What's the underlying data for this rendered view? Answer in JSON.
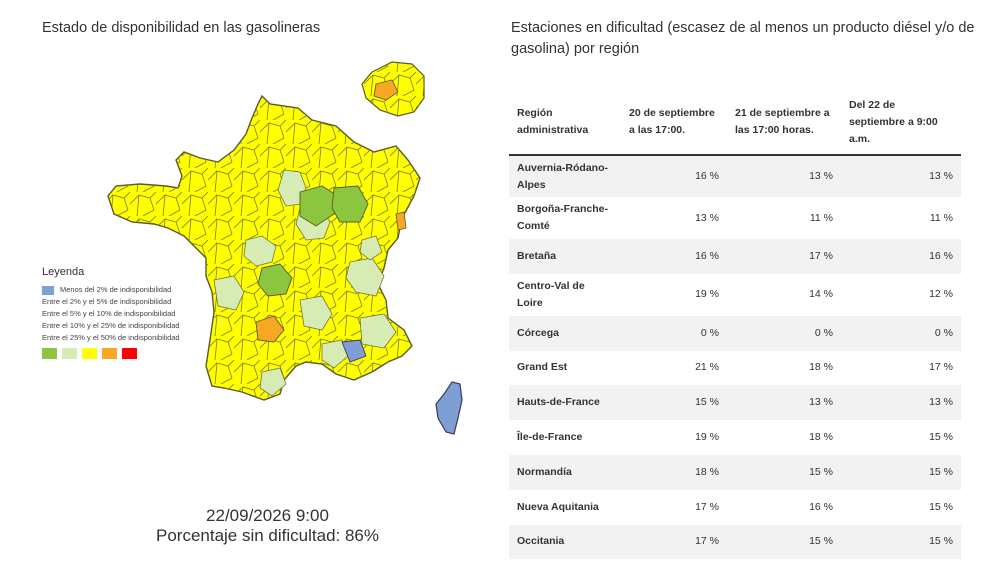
{
  "left": {
    "title": "Estado de disponibilidad en las gasolineras",
    "legend": {
      "title": "Leyenda",
      "items": [
        "Menos del 2% de indisponibilidad",
        "Entre el 2% y el 5% de indisponibilidad",
        "Entre el 5% y el 10% de indisponibilidad",
        "Entre el 10% y el 25% de indisponibilidad",
        "Entre el 25% y el 50% de indisponibilidad"
      ],
      "swatch_colors": [
        "#8cc63f",
        "#d6ecb4",
        "#ffff00",
        "#f7a823",
        "#ff0000"
      ],
      "blue_color": "#7f9fd4"
    },
    "date": "22/09/2026 9:00",
    "percent_line": "Porcentaje sin dificultad: 86%"
  },
  "right": {
    "title": "Estaciones en dificultad (escasez de al menos un producto diésel y/o de gasolina) por región",
    "table": {
      "headers": [
        "Región administrativa",
        "20 de septiembre a las 17:00.",
        "21 de septiembre a las 17:00 horas.",
        "Del 22 de septiembre a 9:00 a.m."
      ],
      "rows": [
        {
          "region": "Auvernia-Ródano-Alpes",
          "d20": "16 %",
          "d21": "13 %",
          "d22": "13 %"
        },
        {
          "region": "Borgoña-Franche-Comté",
          "d20": "13 %",
          "d21": "11 %",
          "d22": "11 %"
        },
        {
          "region": "Bretaña",
          "d20": "16 %",
          "d21": "17 %",
          "d22": "16 %"
        },
        {
          "region": "Centro-Val de Loire",
          "d20": "19 %",
          "d21": "14 %",
          "d22": "12 %"
        },
        {
          "region": "Córcega",
          "d20": "0 %",
          "d21": "0 %",
          "d22": "0 %"
        },
        {
          "region": "Grand Est",
          "d20": "21 %",
          "d21": "18 %",
          "d22": "17 %"
        },
        {
          "region": "Hauts-de-France",
          "d20": "15 %",
          "d21": "13 %",
          "d22": "13 %"
        },
        {
          "region": "Île-de-France",
          "d20": "19 %",
          "d21": "18 %",
          "d22": "15 %"
        },
        {
          "region": "Normandía",
          "d20": "18 %",
          "d21": "15 %",
          "d22": "15 %"
        },
        {
          "region": "Nueva Aquitania",
          "d20": "17 %",
          "d21": "16 %",
          "d22": "15 %"
        },
        {
          "region": "Occitania",
          "d20": "17 %",
          "d21": "15 %",
          "d22": "15 %"
        }
      ]
    }
  },
  "map_colors": {
    "yellow": "#ffff00",
    "light_green": "#d6ecb4",
    "green": "#8cc63f",
    "orange": "#f7a823",
    "blue": "#7f9fd4",
    "border": "#6b6b3a"
  }
}
